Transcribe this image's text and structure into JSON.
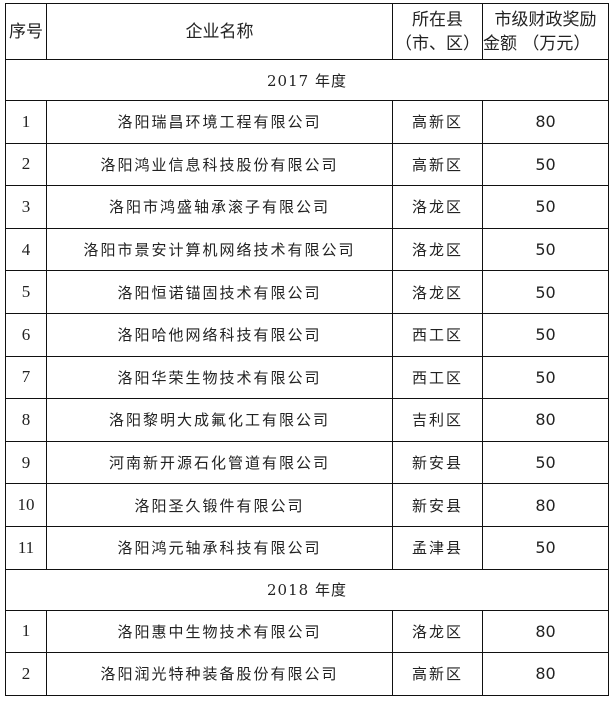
{
  "header": {
    "index": "序号",
    "company": "企业名称",
    "county_line1": "所在县",
    "county_line2": "（市、区）",
    "amount_line1": "市级财政奖励",
    "amount_line2": "金额 （万元）"
  },
  "sections": [
    {
      "year": "2017 年度",
      "rows": [
        {
          "index": "1",
          "company": "洛阳瑞昌环境工程有限公司",
          "county": "高新区",
          "amount": "80"
        },
        {
          "index": "2",
          "company": "洛阳鸿业信息科技股份有限公司",
          "county": "高新区",
          "amount": "50"
        },
        {
          "index": "3",
          "company": "洛阳市鸿盛轴承滚子有限公司",
          "county": "洛龙区",
          "amount": "50"
        },
        {
          "index": "4",
          "company": "洛阳市景安计算机网络技术有限公司",
          "county": "洛龙区",
          "amount": "50"
        },
        {
          "index": "5",
          "company": "洛阳恒诺锚固技术有限公司",
          "county": "洛龙区",
          "amount": "50"
        },
        {
          "index": "6",
          "company": "洛阳哈他网络科技有限公司",
          "county": "西工区",
          "amount": "50"
        },
        {
          "index": "7",
          "company": "洛阳华荣生物技术有限公司",
          "county": "西工区",
          "amount": "50"
        },
        {
          "index": "8",
          "company": "洛阳黎明大成氟化工有限公司",
          "county": "吉利区",
          "amount": "80"
        },
        {
          "index": "9",
          "company": "河南新开源石化管道有限公司",
          "county": "新安县",
          "amount": "50"
        },
        {
          "index": "10",
          "company": "洛阳圣久锻件有限公司",
          "county": "新安县",
          "amount": "80"
        },
        {
          "index": "11",
          "company": "洛阳鸿元轴承科技有限公司",
          "county": "孟津县",
          "amount": "50"
        }
      ]
    },
    {
      "year": "2018 年度",
      "rows": [
        {
          "index": "1",
          "company": "洛阳惠中生物技术有限公司",
          "county": "洛龙区",
          "amount": "80"
        },
        {
          "index": "2",
          "company": "洛阳润光特种装备股份有限公司",
          "county": "高新区",
          "amount": "80"
        }
      ]
    }
  ]
}
